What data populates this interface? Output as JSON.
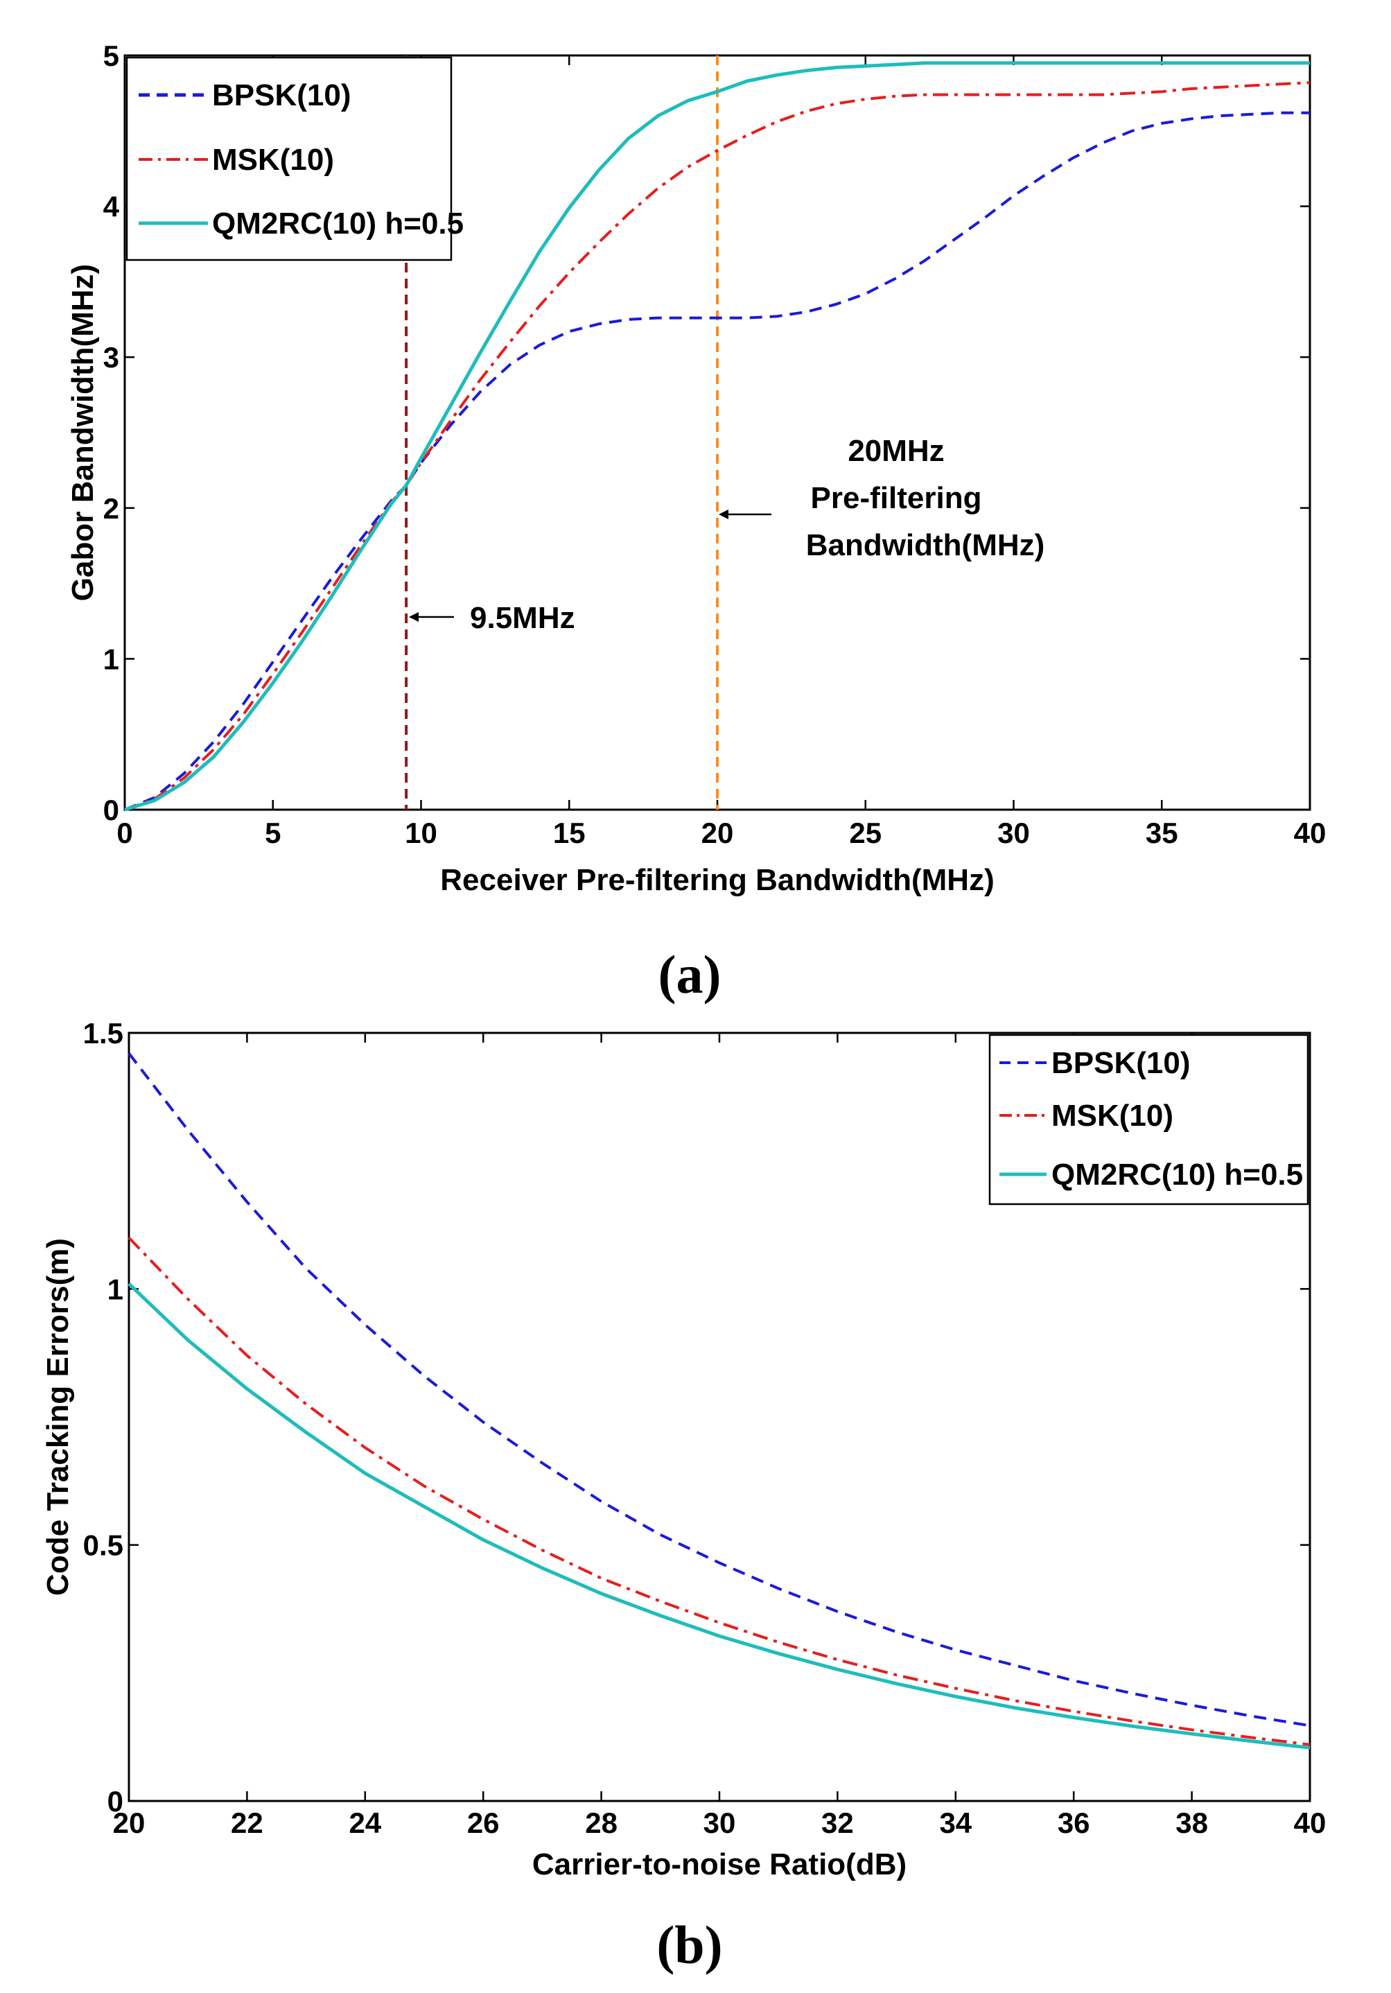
{
  "chart_data": [
    {
      "id": "a",
      "type": "line",
      "panel_label": "(a)",
      "title": "",
      "xlabel": "Receiver Pre-filtering Bandwidth(MHz)",
      "ylabel": "Gabor Bandwidth(MHz)",
      "xlim": [
        0,
        40
      ],
      "ylim": [
        0,
        5
      ],
      "xticks": [
        0,
        5,
        10,
        15,
        20,
        25,
        30,
        35,
        40
      ],
      "yticks": [
        0,
        1,
        2,
        3,
        4,
        5
      ],
      "legend_position": "top-left",
      "series": [
        {
          "name": "BPSK(10)",
          "color": "#1a1adc",
          "style": "dashed",
          "x": [
            0,
            1,
            2,
            3,
            4,
            5,
            6,
            7,
            8,
            9,
            9.5,
            10,
            11,
            12,
            13,
            14,
            15,
            16,
            17,
            18,
            19,
            20,
            21,
            22,
            23,
            24,
            25,
            26,
            27,
            28,
            29,
            30,
            31,
            32,
            33,
            34,
            35,
            36,
            37,
            38,
            39,
            40
          ],
          "y": [
            0,
            0.08,
            0.24,
            0.45,
            0.7,
            0.98,
            1.26,
            1.54,
            1.8,
            2.05,
            2.15,
            2.3,
            2.55,
            2.77,
            2.95,
            3.08,
            3.17,
            3.22,
            3.25,
            3.26,
            3.26,
            3.26,
            3.26,
            3.27,
            3.3,
            3.35,
            3.42,
            3.52,
            3.64,
            3.78,
            3.92,
            4.07,
            4.2,
            4.32,
            4.42,
            4.5,
            4.55,
            4.58,
            4.6,
            4.61,
            4.62,
            4.62
          ]
        },
        {
          "name": "MSK(10)",
          "color": "#e61e1e",
          "style": "dash-dot",
          "x": [
            0,
            1,
            2,
            3,
            4,
            5,
            6,
            7,
            8,
            9,
            9.5,
            10,
            11,
            12,
            13,
            14,
            15,
            16,
            17,
            18,
            19,
            20,
            21,
            22,
            23,
            24,
            25,
            26,
            27,
            28,
            29,
            30,
            31,
            32,
            33,
            34,
            35,
            36,
            37,
            38,
            39,
            40
          ],
          "y": [
            0,
            0.07,
            0.21,
            0.4,
            0.63,
            0.9,
            1.18,
            1.47,
            1.76,
            2.04,
            2.15,
            2.3,
            2.58,
            2.85,
            3.1,
            3.34,
            3.56,
            3.76,
            3.95,
            4.12,
            4.26,
            4.37,
            4.47,
            4.56,
            4.63,
            4.68,
            4.71,
            4.73,
            4.74,
            4.74,
            4.74,
            4.74,
            4.74,
            4.74,
            4.74,
            4.75,
            4.76,
            4.78,
            4.79,
            4.8,
            4.81,
            4.82
          ]
        },
        {
          "name": "QM2RC(10) h=0.5",
          "color": "#1fbcbc",
          "style": "solid",
          "x": [
            0,
            1,
            2,
            3,
            4,
            5,
            6,
            7,
            8,
            9,
            9.5,
            10,
            11,
            12,
            13,
            14,
            15,
            16,
            17,
            18,
            19,
            20,
            21,
            22,
            23,
            24,
            25,
            26,
            27,
            28,
            29,
            30,
            31,
            32,
            33,
            34,
            35,
            36,
            37,
            38,
            39,
            40
          ],
          "y": [
            0,
            0.06,
            0.18,
            0.35,
            0.58,
            0.84,
            1.12,
            1.42,
            1.73,
            2.03,
            2.15,
            2.33,
            2.68,
            3.03,
            3.37,
            3.7,
            3.99,
            4.24,
            4.45,
            4.6,
            4.7,
            4.76,
            4.83,
            4.87,
            4.9,
            4.92,
            4.93,
            4.94,
            4.95,
            4.95,
            4.95,
            4.95,
            4.95,
            4.95,
            4.95,
            4.95,
            4.95,
            4.95,
            4.95,
            4.95,
            4.95,
            4.95
          ]
        }
      ],
      "vlines": [
        {
          "x": 9.5,
          "color": "#8b1a1a",
          "style": "dashed"
        },
        {
          "x": 20,
          "color": "#ff8c1a",
          "style": "dashed"
        }
      ],
      "annotations": [
        {
          "id": "a1",
          "arrow_to_x": 9.5,
          "lines": [
            "9.5MHz"
          ]
        },
        {
          "id": "a2",
          "arrow_to_x": 20,
          "lines": [
            "20MHz",
            "Pre-filtering",
            "Bandwidth(MHz)"
          ]
        }
      ]
    },
    {
      "id": "b",
      "type": "line",
      "panel_label": "(b)",
      "title": "",
      "xlabel": "Carrier-to-noise Ratio(dB)",
      "ylabel": "Code Tracking Errors(m)",
      "xlim": [
        20,
        40
      ],
      "ylim": [
        0,
        1.5
      ],
      "xticks": [
        20,
        22,
        24,
        26,
        28,
        30,
        32,
        34,
        36,
        38,
        40
      ],
      "yticks": [
        0,
        0.5,
        1,
        1.5
      ],
      "legend_position": "top-right",
      "series": [
        {
          "name": "BPSK(10)",
          "color": "#1a1adc",
          "style": "dashed",
          "x": [
            20,
            21,
            22,
            23,
            24,
            25,
            26,
            27,
            28,
            29,
            30,
            31,
            32,
            33,
            34,
            35,
            36,
            37,
            38,
            39,
            40
          ],
          "y": [
            1.46,
            1.31,
            1.17,
            1.04,
            0.93,
            0.83,
            0.74,
            0.66,
            0.585,
            0.52,
            0.465,
            0.415,
            0.37,
            0.33,
            0.295,
            0.265,
            0.235,
            0.21,
            0.187,
            0.166,
            0.147
          ]
        },
        {
          "name": "MSK(10)",
          "color": "#e61e1e",
          "style": "dash-dot",
          "x": [
            20,
            21,
            22,
            23,
            24,
            25,
            26,
            27,
            28,
            29,
            30,
            31,
            32,
            33,
            34,
            35,
            36,
            37,
            38,
            39,
            40
          ],
          "y": [
            1.1,
            0.98,
            0.87,
            0.775,
            0.69,
            0.615,
            0.55,
            0.49,
            0.435,
            0.39,
            0.348,
            0.31,
            0.276,
            0.246,
            0.22,
            0.196,
            0.175,
            0.156,
            0.139,
            0.124,
            0.11
          ]
        },
        {
          "name": "QM2RC(10) h=0.5",
          "color": "#1fbcbc",
          "style": "solid",
          "x": [
            20,
            21,
            22,
            23,
            24,
            25,
            26,
            27,
            28,
            29,
            30,
            31,
            32,
            33,
            34,
            35,
            36,
            37,
            38,
            39,
            40
          ],
          "y": [
            1.01,
            0.9,
            0.805,
            0.72,
            0.64,
            0.575,
            0.51,
            0.455,
            0.405,
            0.362,
            0.322,
            0.288,
            0.257,
            0.229,
            0.204,
            0.182,
            0.163,
            0.146,
            0.131,
            0.117,
            0.104
          ]
        }
      ]
    }
  ]
}
